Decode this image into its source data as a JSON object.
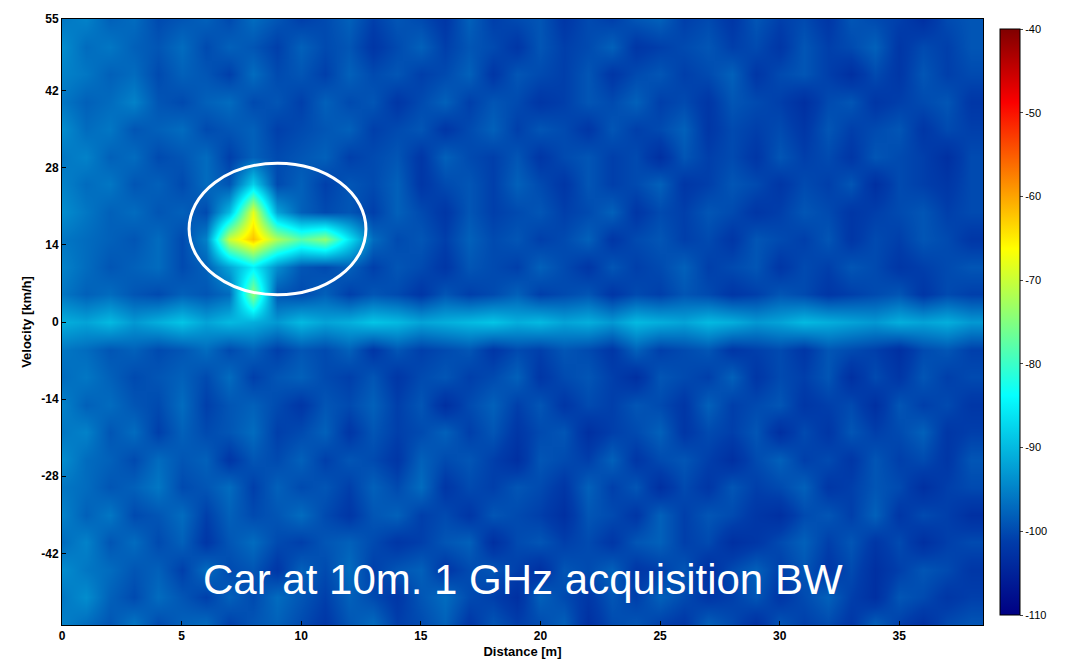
{
  "chart_data": {
    "type": "heatmap",
    "x_label": "Distance [m]",
    "y_label": "Velocity [km/h]",
    "annotation": "Car at 10m. 1 GHz acquisition BW",
    "xlim": [
      0,
      38.5
    ],
    "ylim": [
      -55,
      55
    ],
    "xticks": [
      0,
      5,
      10,
      15,
      20,
      25,
      30,
      35
    ],
    "yticks": [
      -42,
      -28,
      -14,
      0,
      14,
      28,
      42,
      55
    ],
    "colorbar_range": [
      -110,
      -40
    ],
    "colorbar_ticks": [
      -110,
      -100,
      -90,
      -80,
      -70,
      -60,
      -50,
      -40
    ],
    "x": [
      0,
      1,
      2,
      3,
      4,
      5,
      6,
      7,
      8,
      9,
      10,
      11,
      12,
      13,
      14,
      15,
      16,
      17,
      18,
      19,
      20,
      21,
      22,
      23,
      24,
      25,
      26,
      27,
      28,
      29,
      30,
      31,
      32,
      33,
      34,
      35,
      36,
      37,
      38
    ],
    "y": [
      -55,
      -50,
      -45,
      -40,
      -35,
      -30,
      -25,
      -20,
      -15,
      -10,
      -5,
      0,
      5,
      10,
      15,
      20,
      25,
      30,
      35,
      40,
      45,
      50,
      55
    ],
    "cells": [
      [
        -95,
        -97,
        -99,
        -96,
        -100,
        -98,
        -97,
        -101,
        -99,
        -98,
        -100,
        -102,
        -99,
        -97,
        -101,
        -100,
        -98,
        -102,
        -99,
        -101,
        -100,
        -98,
        -103,
        -100,
        -99,
        -101,
        -102,
        -98,
        -100,
        -103,
        -99,
        -101,
        -100,
        -102,
        -98,
        -101,
        -103,
        -100,
        -99
      ],
      [
        -96,
        -94,
        -98,
        -100,
        -97,
        -99,
        -101,
        -98,
        -100,
        -97,
        -99,
        -101,
        -98,
        -100,
        -102,
        -99,
        -97,
        -100,
        -101,
        -103,
        -98,
        -100,
        -102,
        -99,
        -101,
        -98,
        -100,
        -102,
        -101,
        -99,
        -102,
        -100,
        -98,
        -101,
        -103,
        -99,
        -100,
        -102,
        -101
      ],
      [
        -94,
        -96,
        -97,
        -99,
        -98,
        -101,
        -97,
        -100,
        -99,
        -102,
        -98,
        -100,
        -97,
        -101,
        -99,
        -98,
        -102,
        -100,
        -99,
        -101,
        -103,
        -99,
        -100,
        -98,
        -102,
        -101,
        -99,
        -103,
        -100,
        -98,
        -101,
        -99,
        -102,
        -100,
        -103,
        -101,
        -99,
        -100,
        -102
      ],
      [
        -97,
        -95,
        -99,
        -97,
        -100,
        -98,
        -102,
        -99,
        -97,
        -100,
        -101,
        -99,
        -98,
        -100,
        -102,
        -101,
        -99,
        -98,
        -103,
        -100,
        -99,
        -101,
        -100,
        -102,
        -99,
        -98,
        -101,
        -100,
        -103,
        -102,
        -100,
        -98,
        -101,
        -99,
        -102,
        -100,
        -103,
        -101,
        -100
      ],
      [
        -95,
        -98,
        -96,
        -100,
        -99,
        -97,
        -101,
        -98,
        -100,
        -99,
        -97,
        -100,
        -102,
        -99,
        -98,
        -101,
        -100,
        -102,
        -99,
        -100,
        -101,
        -103,
        -99,
        -100,
        -102,
        -98,
        -101,
        -99,
        -100,
        -102,
        -103,
        -100,
        -99,
        -101,
        -98,
        -102,
        -100,
        -101,
        -103
      ],
      [
        -96,
        -97,
        -99,
        -98,
        -96,
        -100,
        -99,
        -97,
        -101,
        -98,
        -100,
        -99,
        -101,
        -98,
        -100,
        -97,
        -102,
        -100,
        -101,
        -99,
        -100,
        -102,
        -98,
        -101,
        -99,
        -103,
        -100,
        -102,
        -99,
        -101,
        -100,
        -98,
        -102,
        -101,
        -99,
        -100,
        -103,
        -101,
        -100
      ],
      [
        -94,
        -97,
        -98,
        -100,
        -97,
        -99,
        -98,
        -102,
        -99,
        -100,
        -98,
        -101,
        -99,
        -100,
        -102,
        -98,
        -100,
        -99,
        -101,
        -103,
        -99,
        -100,
        -101,
        -98,
        -102,
        -100,
        -99,
        -101,
        -103,
        -100,
        -98,
        -101,
        -100,
        -102,
        -99,
        -101,
        -100,
        -102,
        -99
      ],
      [
        -96,
        -95,
        -99,
        -97,
        -101,
        -98,
        -100,
        -99,
        -97,
        -101,
        -100,
        -98,
        -102,
        -99,
        -101,
        -100,
        -98,
        -101,
        -99,
        -102,
        -100,
        -99,
        -103,
        -101,
        -100,
        -98,
        -102,
        -100,
        -101,
        -99,
        -103,
        -100,
        -102,
        -99,
        -101,
        -100,
        -98,
        -102,
        -101
      ],
      [
        -95,
        -98,
        -97,
        -99,
        -100,
        -97,
        -101,
        -99,
        -98,
        -100,
        -102,
        -99,
        -100,
        -98,
        -101,
        -99,
        -103,
        -100,
        -98,
        -101,
        -99,
        -102,
        -100,
        -101,
        -99,
        -100,
        -102,
        -98,
        -101,
        -100,
        -99,
        -102,
        -101,
        -100,
        -103,
        -99,
        -101,
        -100,
        -102
      ],
      [
        -97,
        -96,
        -98,
        -100,
        -99,
        -98,
        -100,
        -97,
        -101,
        -99,
        -98,
        -100,
        -101,
        -99,
        -102,
        -100,
        -99,
        -101,
        -100,
        -98,
        -102,
        -100,
        -99,
        -101,
        -103,
        -99,
        -100,
        -101,
        -98,
        -102,
        -100,
        -101,
        -99,
        -103,
        -100,
        -102,
        -99,
        -101,
        -100
      ],
      [
        -96,
        -97,
        -99,
        -98,
        -100,
        -99,
        -97,
        -100,
        -98,
        -101,
        -99,
        -100,
        -98,
        -102,
        -99,
        -101,
        -100,
        -99,
        -102,
        -100,
        -101,
        -99,
        -100,
        -102,
        -98,
        -101,
        -100,
        -99,
        -102,
        -101,
        -100,
        -102,
        -99,
        -100,
        -101,
        -103,
        -100,
        -99,
        -101
      ],
      [
        -91,
        -92,
        -90,
        -93,
        -91,
        -89,
        -92,
        -90,
        -91,
        -93,
        -90,
        -92,
        -91,
        -89,
        -90,
        -92,
        -91,
        -90,
        -89,
        -91,
        -90,
        -92,
        -91,
        -93,
        -90,
        -91,
        -92,
        -90,
        -91,
        -93,
        -92,
        -90,
        -91,
        -92,
        -93,
        -91,
        -92,
        -91,
        -93
      ],
      [
        -96,
        -98,
        -97,
        -99,
        -100,
        -98,
        -99,
        -97,
        -74,
        -99,
        -100,
        -98,
        -101,
        -99,
        -100,
        -102,
        -99,
        -101,
        -100,
        -98,
        -101,
        -100,
        -99,
        -102,
        -100,
        -101,
        -99,
        -100,
        -102,
        -101,
        -99,
        -100,
        -102,
        -101,
        -100,
        -99,
        -102,
        -100,
        -101
      ],
      [
        -95,
        -97,
        -99,
        -98,
        -97,
        -100,
        -98,
        -92,
        -85,
        -94,
        -99,
        -100,
        -98,
        -101,
        -99,
        -100,
        -102,
        -99,
        -100,
        -101,
        -98,
        -100,
        -102,
        -99,
        -101,
        -100,
        -98,
        -101,
        -100,
        -99,
        -102,
        -100,
        -101,
        -99,
        -100,
        -102,
        -101,
        -100,
        -99
      ],
      [
        -96,
        -97,
        -98,
        -99,
        -97,
        -100,
        -95,
        -70,
        -62,
        -72,
        -78,
        -74,
        -86,
        -97,
        -100,
        -99,
        -101,
        -98,
        -100,
        -99,
        -101,
        -100,
        -98,
        -102,
        -100,
        -99,
        -101,
        -100,
        -102,
        -99,
        -100,
        -101,
        -99,
        -102,
        -100,
        -101,
        -99,
        -100,
        -102
      ],
      [
        -94,
        -96,
        -98,
        -97,
        -99,
        -98,
        -100,
        -90,
        -68,
        -92,
        -98,
        -100,
        -99,
        -101,
        -98,
        -100,
        -102,
        -99,
        -101,
        -100,
        -99,
        -101,
        -100,
        -98,
        -102,
        -100,
        -101,
        -99,
        -100,
        -102,
        -101,
        -99,
        -100,
        -102,
        -101,
        -100,
        -99,
        -101,
        -100
      ],
      [
        -95,
        -97,
        -96,
        -99,
        -98,
        -100,
        -97,
        -99,
        -88,
        -100,
        -98,
        -101,
        -99,
        -100,
        -98,
        -102,
        -100,
        -99,
        -101,
        -98,
        -100,
        -102,
        -99,
        -101,
        -100,
        -98,
        -102,
        -101,
        -99,
        -100,
        -102,
        -100,
        -101,
        -99,
        -103,
        -100,
        -101,
        -102,
        -100
      ],
      [
        -96,
        -95,
        -98,
        -97,
        -100,
        -99,
        -97,
        -101,
        -98,
        -100,
        -99,
        -98,
        -101,
        -100,
        -99,
        -102,
        -98,
        -100,
        -101,
        -99,
        -102,
        -100,
        -99,
        -101,
        -100,
        -103,
        -99,
        -101,
        -100,
        -102,
        -99,
        -101,
        -100,
        -102,
        -99,
        -100,
        -101,
        -103,
        -100
      ],
      [
        -94,
        -97,
        -96,
        -99,
        -98,
        -97,
        -100,
        -99,
        -98,
        -101,
        -100,
        -99,
        -98,
        -101,
        -100,
        -99,
        -102,
        -100,
        -98,
        -101,
        -99,
        -100,
        -102,
        -99,
        -101,
        -100,
        -98,
        -102,
        -100,
        -101,
        -100,
        -102,
        -99,
        -101,
        -100,
        -99,
        -102,
        -100,
        -101
      ],
      [
        -96,
        -98,
        -97,
        -95,
        -99,
        -100,
        -98,
        -97,
        -100,
        -99,
        -101,
        -98,
        -100,
        -99,
        -102,
        -100,
        -98,
        -101,
        -99,
        -100,
        -102,
        -101,
        -99,
        -100,
        -98,
        -101,
        -100,
        -102,
        -99,
        -100,
        -101,
        -103,
        -100,
        -99,
        -102,
        -101,
        -100,
        -99,
        -102
      ],
      [
        -95,
        -96,
        -98,
        -97,
        -100,
        -98,
        -99,
        -101,
        -97,
        -100,
        -99,
        -101,
        -98,
        -100,
        -99,
        -101,
        -100,
        -98,
        -102,
        -99,
        -100,
        -101,
        -99,
        -102,
        -100,
        -99,
        -101,
        -100,
        -98,
        -102,
        -100,
        -99,
        -101,
        -103,
        -100,
        -102,
        -99,
        -101,
        -100
      ],
      [
        -94,
        -97,
        -96,
        -98,
        -99,
        -97,
        -100,
        -98,
        -99,
        -101,
        -98,
        -100,
        -99,
        -102,
        -100,
        -98,
        -101,
        -99,
        -100,
        -102,
        -99,
        -101,
        -100,
        -98,
        -102,
        -101,
        -100,
        -99,
        -101,
        -100,
        -102,
        -99,
        -101,
        -100,
        -98,
        -102,
        -100,
        -101,
        -99
      ],
      [
        -96,
        -95,
        -98,
        -97,
        -100,
        -99,
        -98,
        -100,
        -97,
        -99,
        -101,
        -100,
        -98,
        -101,
        -99,
        -100,
        -102,
        -98,
        -101,
        -100,
        -99,
        -102,
        -100,
        -101,
        -99,
        -98,
        -101,
        -100,
        -102,
        -99,
        -101,
        -100,
        -102,
        -99,
        -100,
        -101,
        -103,
        -100,
        -99
      ]
    ]
  }
}
